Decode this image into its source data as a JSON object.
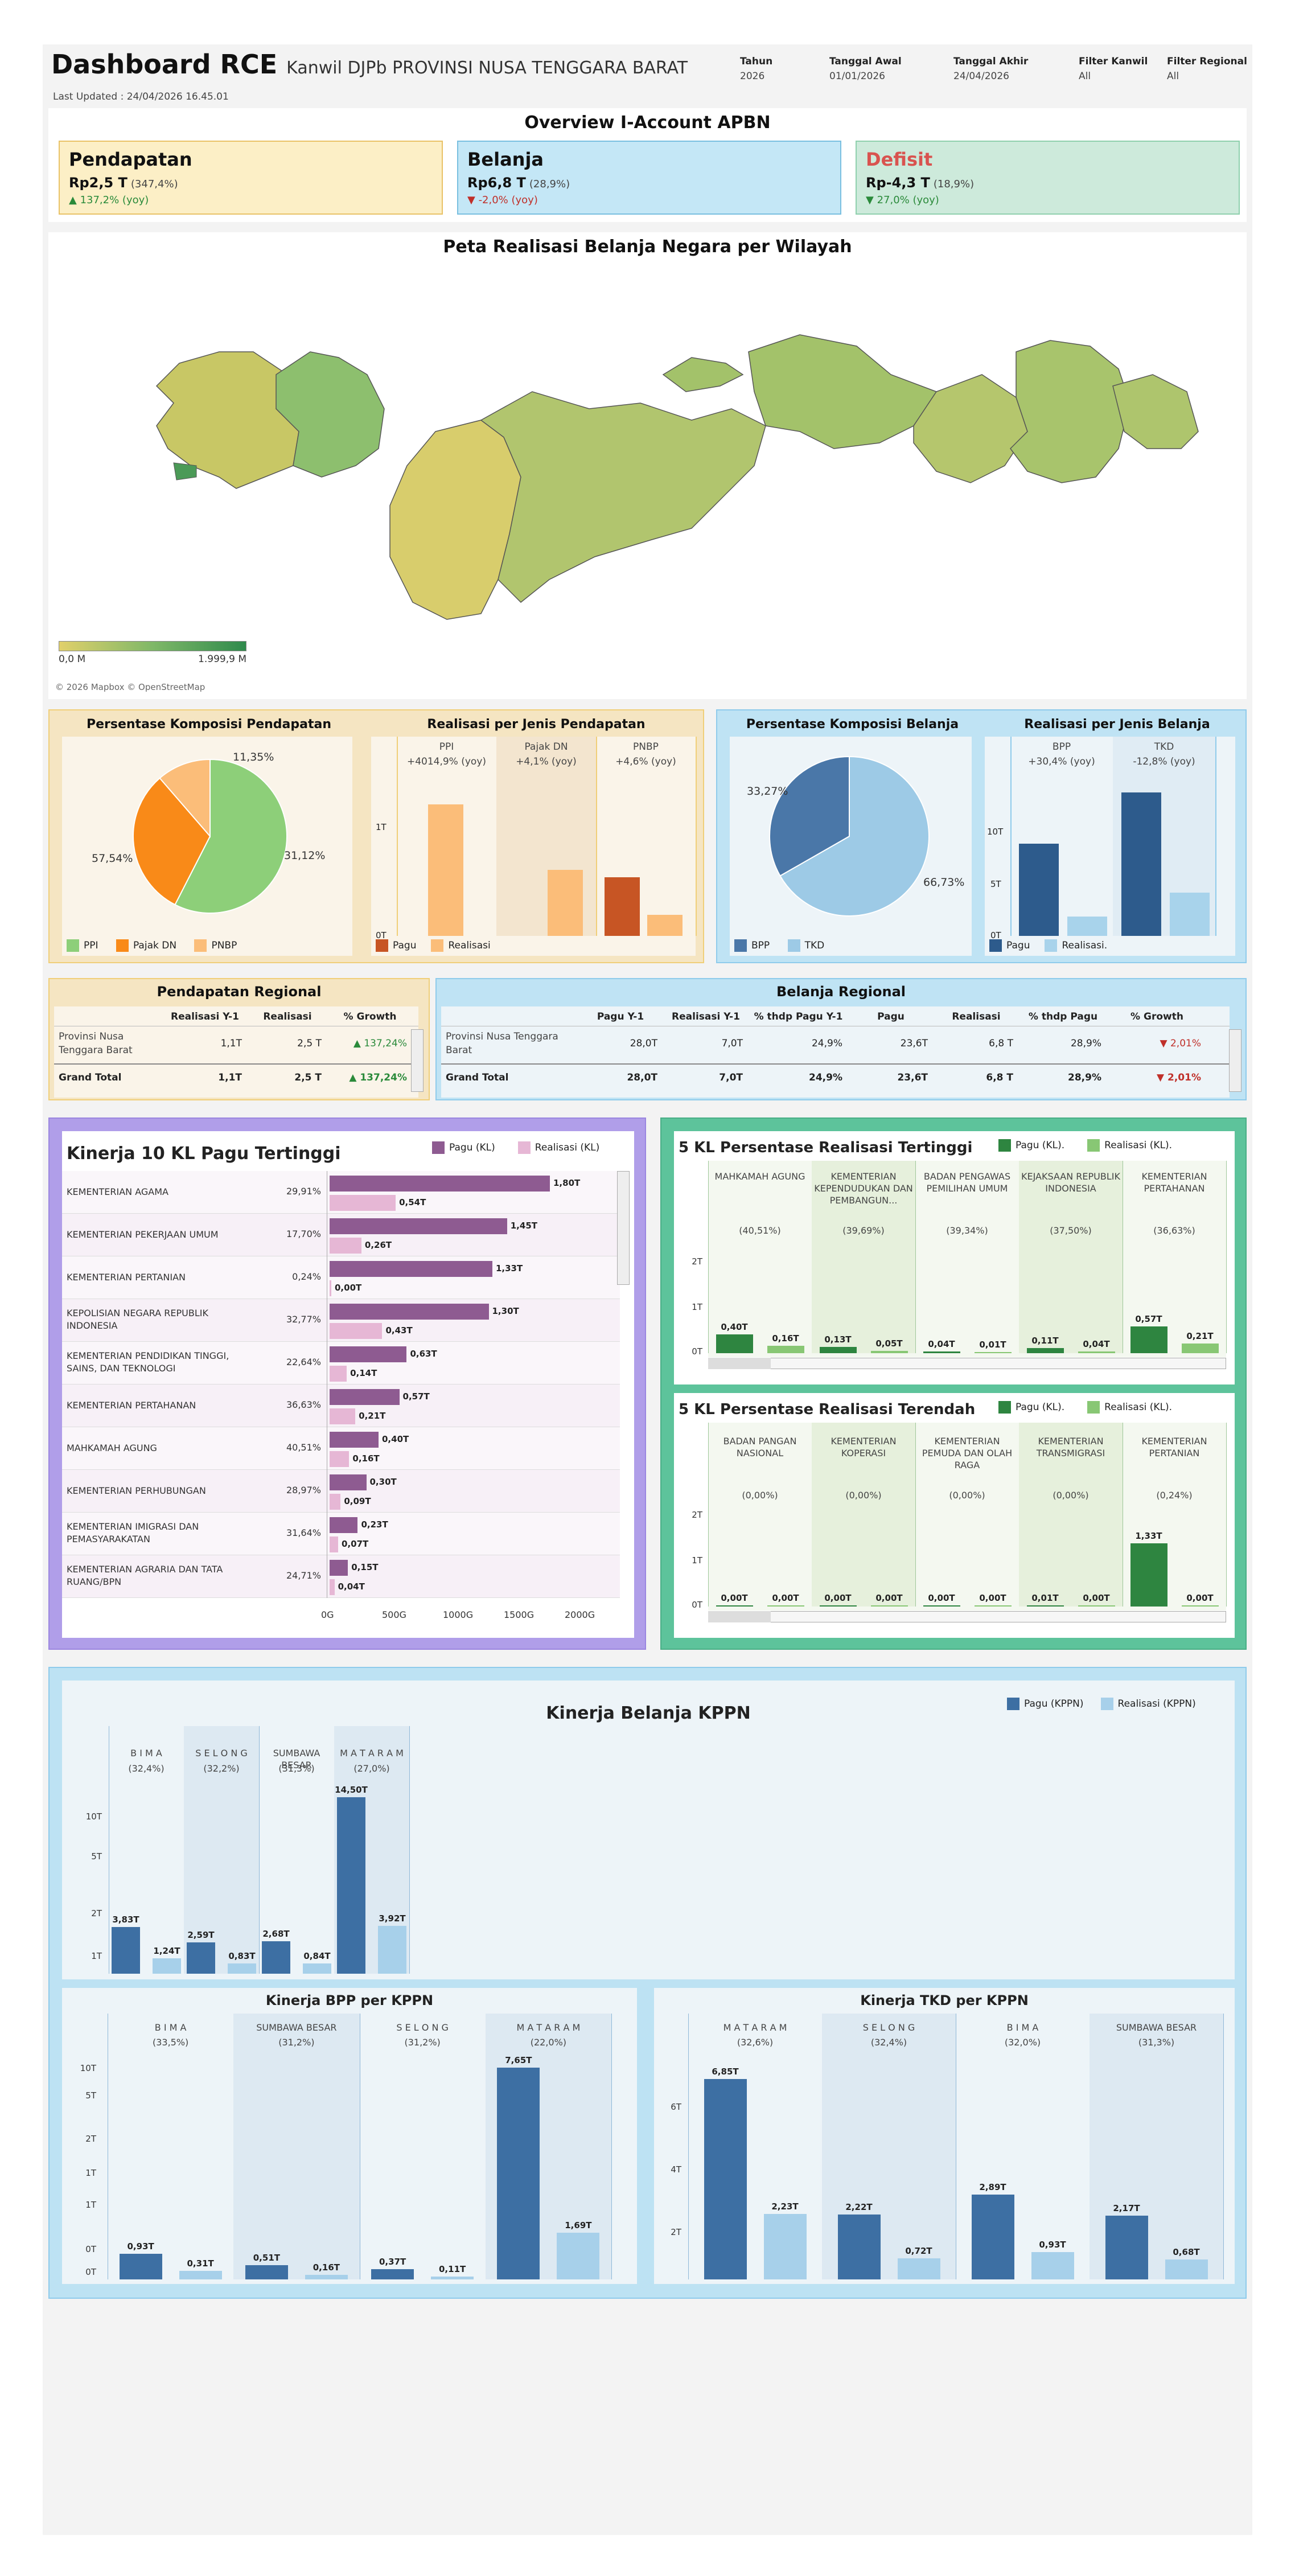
{
  "header": {
    "title": "Dashboard RCE",
    "subtitle": "Kanwil DJPb PROVINSI NUSA TENGGARA BARAT",
    "updated": "Last Updated : 24/04/2026 16.45.01",
    "filters": [
      {
        "label": "Tahun",
        "value": "2026"
      },
      {
        "label": "Tanggal Awal",
        "value": "01/01/2026"
      },
      {
        "label": "Tanggal Akhir",
        "value": "24/04/2026"
      },
      {
        "label": "Filter Kanwil",
        "value": "All"
      },
      {
        "label": "Filter Regional",
        "value": "All"
      }
    ]
  },
  "overview": {
    "title": "Overview I-Account APBN",
    "cards": [
      {
        "name": "Pendapatan",
        "value": "Rp2,5 T",
        "pct": "(347,4%)",
        "yoy": "▲ 137,2% (yoy)",
        "bg": "#fcefc6",
        "border": "#e9c267",
        "name_color": "#111",
        "yoy_color": "#2a8a3a"
      },
      {
        "name": "Belanja",
        "value": "Rp6,8 T",
        "pct": "(28,9%)",
        "yoy": "▼ -2,0% (yoy)",
        "bg": "#c4e7f6",
        "border": "#79bfe0",
        "name_color": "#111",
        "yoy_color": "#c0302a"
      },
      {
        "name": "Defisit",
        "value": "Rp-4,3 T",
        "pct": "(18,9%)",
        "yoy": "▼ 27,0% (yoy)",
        "bg": "#cdeadb",
        "border": "#8fd0ad",
        "name_color": "#d9534f",
        "yoy_color": "#2a8a3a"
      }
    ]
  },
  "map": {
    "title": "Peta Realisasi Belanja Negara per Wilayah",
    "legend_min": "0,0 M",
    "legend_max": "1.999,9 M",
    "attribution": "© 2026 Mapbox © OpenStreetMap"
  },
  "pendapatan": {
    "pie_title": "Persentase Komposisi Pendapatan",
    "bar_title": "Realisasi per Jenis Pendapatan",
    "pie_legend": [
      "PPI",
      "Pajak DN",
      "PNBP"
    ],
    "bar_legend": [
      "Pagu",
      "Realisasi"
    ],
    "pie_labels": [
      "11,35%",
      "31,12%",
      "57,54%"
    ],
    "cols": [
      {
        "name": "PPI",
        "yoy": "+4014,9% (yoy)"
      },
      {
        "name": "Pajak DN",
        "yoy": "+4,1% (yoy)"
      },
      {
        "name": "PNBP",
        "yoy": "+4,6% (yoy)"
      }
    ],
    "ticks": [
      "1T",
      "0T"
    ]
  },
  "belanja": {
    "pie_title": "Persentase Komposisi Belanja",
    "bar_title": "Realisasi per Jenis Belanja",
    "pie_legend": [
      "BPP",
      "TKD"
    ],
    "bar_legend": [
      "Pagu",
      "Realisasi."
    ],
    "pie_labels": [
      "33,27%",
      "66,73%"
    ],
    "cols": [
      {
        "name": "BPP",
        "yoy": "+30,4% (yoy)"
      },
      {
        "name": "TKD",
        "yoy": "-12,8% (yoy)"
      }
    ],
    "ticks": [
      "10T",
      "5T",
      "0T"
    ]
  },
  "pend_regional": {
    "title": "Pendapatan  Regional",
    "headers": [
      "Realisasi Y-1",
      "Realisasi",
      "% Growth"
    ],
    "row": {
      "name": "Provinsi Nusa Tenggara Barat",
      "v": [
        "1,1T",
        "2,5 T",
        "▲ 137,24%"
      ]
    },
    "total": {
      "name": "Grand Total",
      "v": [
        "1,1T",
        "2,5 T",
        "▲ 137,24%"
      ]
    }
  },
  "bel_regional": {
    "title": "Belanja Regional",
    "headers": [
      "Pagu Y-1",
      "Realisasi Y-1",
      "% thdp Pagu Y-1",
      "Pagu",
      "Realisasi",
      "% thdp Pagu",
      "% Growth"
    ],
    "row": {
      "name": "Provinsi Nusa Tenggara Barat",
      "v": [
        "28,0T",
        "7,0T",
        "24,9%",
        "23,6T",
        "6,8 T",
        "28,9%",
        "▼ 2,01%"
      ]
    },
    "total": {
      "name": "Grand Total",
      "v": [
        "28,0T",
        "7,0T",
        "24,9%",
        "23,6T",
        "6,8 T",
        "28,9%",
        "▼ 2,01%"
      ]
    }
  },
  "kinerja10": {
    "title": "Kinerja 10 KL Pagu Tertinggi",
    "legend": [
      "Pagu (KL)",
      "Realisasi (KL)"
    ],
    "rows": [
      {
        "name": "KEMENTERIAN AGAMA",
        "pct": "29,91%",
        "pagu": 1.8,
        "real": 0.54,
        "pl": "1,80T",
        "rl": "0,54T"
      },
      {
        "name": "KEMENTERIAN PEKERJAAN UMUM",
        "pct": "17,70%",
        "pagu": 1.45,
        "real": 0.26,
        "pl": "1,45T",
        "rl": "0,26T"
      },
      {
        "name": "KEMENTERIAN PERTANIAN",
        "pct": "0,24%",
        "pagu": 1.33,
        "real": 0.003,
        "pl": "1,33T",
        "rl": "0,00T"
      },
      {
        "name": "KEPOLISIAN NEGARA REPUBLIK INDONESIA",
        "pct": "32,77%",
        "pagu": 1.3,
        "real": 0.43,
        "pl": "1,30T",
        "rl": "0,43T"
      },
      {
        "name": "KEMENTERIAN PENDIDIKAN TINGGI, SAINS, DAN TEKNOLOGI",
        "pct": "22,64%",
        "pagu": 0.63,
        "real": 0.14,
        "pl": "0,63T",
        "rl": "0,14T"
      },
      {
        "name": "KEMENTERIAN PERTAHANAN",
        "pct": "36,63%",
        "pagu": 0.57,
        "real": 0.21,
        "pl": "0,57T",
        "rl": "0,21T"
      },
      {
        "name": "MAHKAMAH AGUNG",
        "pct": "40,51%",
        "pagu": 0.4,
        "real": 0.16,
        "pl": "0,40T",
        "rl": "0,16T"
      },
      {
        "name": "KEMENTERIAN PERHUBUNGAN",
        "pct": "28,97%",
        "pagu": 0.3,
        "real": 0.09,
        "pl": "0,30T",
        "rl": "0,09T"
      },
      {
        "name": "KEMENTERIAN IMIGRASI DAN PEMASYARAKATAN",
        "pct": "31,64%",
        "pagu": 0.23,
        "real": 0.07,
        "pl": "0,23T",
        "rl": "0,07T"
      },
      {
        "name": "KEMENTERIAN AGRARIA DAN TATA RUANG/BPN",
        "pct": "24,71%",
        "pagu": 0.15,
        "real": 0.04,
        "pl": "0,15T",
        "rl": "0,04T"
      }
    ],
    "axis": [
      "0G",
      "500G",
      "1000G",
      "1500G",
      "2000G"
    ]
  },
  "top5": {
    "title": "5 KL Persentase Realisasi Tertinggi",
    "legend": [
      "Pagu (KL).",
      "Realisasi (KL)."
    ],
    "ticks": [
      "2T",
      "1T",
      "0T"
    ],
    "cols": [
      {
        "name": "MAHKAMAH AGUNG",
        "pct": "(40,51%)",
        "pagu": 0.4,
        "real": 0.16,
        "pl": "0,40T",
        "rl": "0,16T"
      },
      {
        "name": "KEMENTERIAN KEPENDUDUKAN DAN PEMBANGUN...",
        "pct": "(39,69%)",
        "pagu": 0.13,
        "real": 0.05,
        "pl": "0,13T",
        "rl": "0,05T"
      },
      {
        "name": "BADAN PENGAWAS PEMILIHAN UMUM",
        "pct": "(39,34%)",
        "pagu": 0.04,
        "real": 0.01,
        "pl": "0,04T",
        "rl": "0,01T"
      },
      {
        "name": "KEJAKSAAN REPUBLIK INDONESIA",
        "pct": "(37,50%)",
        "pagu": 0.11,
        "real": 0.04,
        "pl": "0,11T",
        "rl": "0,04T"
      },
      {
        "name": "KEMENTERIAN PERTAHANAN",
        "pct": "(36,63%)",
        "pagu": 0.57,
        "real": 0.21,
        "pl": "0,57T",
        "rl": "0,21T"
      }
    ]
  },
  "bottom5": {
    "title": "5 KL Persentase Realisasi Terendah",
    "legend": [
      "Pagu (KL).",
      "Realisasi (KL)."
    ],
    "ticks": [
      "2T",
      "1T",
      "0T"
    ],
    "cols": [
      {
        "name": "BADAN PANGAN NASIONAL",
        "pct": "(0,00%)",
        "pagu": 0.003,
        "real": 0.0,
        "pl": "0,00T",
        "rl": "0,00T"
      },
      {
        "name": "KEMENTERIAN KOPERASI",
        "pct": "(0,00%)",
        "pagu": 0.003,
        "real": 0.0,
        "pl": "0,00T",
        "rl": "0,00T"
      },
      {
        "name": "KEMENTERIAN PEMUDA DAN OLAH RAGA",
        "pct": "(0,00%)",
        "pagu": 0.003,
        "real": 0.0,
        "pl": "0,00T",
        "rl": "0,00T"
      },
      {
        "name": "KEMENTERIAN TRANSMIGRASI",
        "pct": "(0,00%)",
        "pagu": 0.01,
        "real": 0.0,
        "pl": "0,01T",
        "rl": "0,00T"
      },
      {
        "name": "KEMENTERIAN PERTANIAN",
        "pct": "(0,24%)",
        "pagu": 1.33,
        "real": 0.003,
        "pl": "1,33T",
        "rl": "0,00T"
      }
    ]
  },
  "kppn": {
    "title": "Kinerja Belanja KPPN",
    "legend": [
      "Pagu (KPPN)",
      "Realisasi (KPPN)"
    ],
    "ticks": [
      "10T",
      "5T",
      "2T",
      "1T"
    ],
    "cols": [
      {
        "name": "B I M A",
        "pct": "(32,4%)",
        "pagu": 3.83,
        "real": 1.24,
        "pl": "3,83T",
        "rl": "1,24T"
      },
      {
        "name": "S E L O N G",
        "pct": "(32,2%)",
        "pagu": 2.59,
        "real": 0.83,
        "pl": "2,59T",
        "rl": "0,83T"
      },
      {
        "name": "SUMBAWA BESAR",
        "pct": "(31,3%)",
        "pagu": 2.68,
        "real": 0.84,
        "pl": "2,68T",
        "rl": "0,84T"
      },
      {
        "name": "M A T A R A M",
        "pct": "(27,0%)",
        "pagu": 14.5,
        "real": 3.92,
        "pl": "14,50T",
        "rl": "3,92T"
      }
    ]
  },
  "bpp": {
    "title": "Kinerja BPP per KPPN",
    "ticks": [
      "10T",
      "5T",
      "2T",
      "1T",
      "1T",
      "0T",
      "0T"
    ],
    "cols": [
      {
        "name": "B I M A",
        "pct": "(33,5%)",
        "pagu": 0.93,
        "real": 0.31,
        "pl": "0,93T",
        "rl": "0,31T"
      },
      {
        "name": "SUMBAWA BESAR",
        "pct": "(31,2%)",
        "pagu": 0.51,
        "real": 0.16,
        "pl": "0,51T",
        "rl": "0,16T"
      },
      {
        "name": "S E L O N G",
        "pct": "(31,2%)",
        "pagu": 0.37,
        "real": 0.11,
        "pl": "0,37T",
        "rl": "0,11T"
      },
      {
        "name": "M A T A R A M",
        "pct": "(22,0%)",
        "pagu": 7.65,
        "real": 1.69,
        "pl": "7,65T",
        "rl": "1,69T"
      }
    ]
  },
  "tkd": {
    "title": "Kinerja TKD per KPPN",
    "ticks": [
      "6T",
      "4T",
      "2T"
    ],
    "cols": [
      {
        "name": "M A T A R A M",
        "pct": "(32,6%)",
        "pagu": 6.85,
        "real": 2.23,
        "pl": "6,85T",
        "rl": "2,23T"
      },
      {
        "name": "S E L O N G",
        "pct": "(32,4%)",
        "pagu": 2.22,
        "real": 0.72,
        "pl": "2,22T",
        "rl": "0,72T"
      },
      {
        "name": "B I M A",
        "pct": "(32,0%)",
        "pagu": 2.89,
        "real": 0.93,
        "pl": "2,89T",
        "rl": "0,93T"
      },
      {
        "name": "SUMBAWA BESAR",
        "pct": "(31,3%)",
        "pagu": 2.17,
        "real": 0.68,
        "pl": "2,17T",
        "rl": "0,68T"
      }
    ]
  }
}
